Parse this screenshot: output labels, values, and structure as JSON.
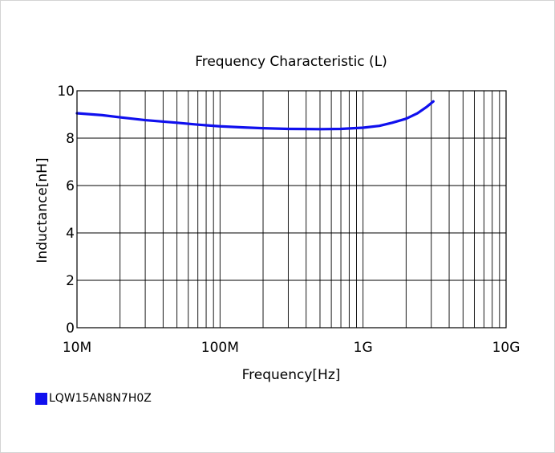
{
  "chart_data": {
    "type": "line",
    "title": "Frequency   Characteristic (L)",
    "xlabel": "Frequency[Hz]",
    "ylabel": "Inductance[nH]",
    "x_scale": "log",
    "xlim": [
      10000000,
      10000000000
    ],
    "ylim": [
      0,
      10
    ],
    "x_ticks": [
      {
        "value": 10000000,
        "label": "10M"
      },
      {
        "value": 100000000,
        "label": "100M"
      },
      {
        "value": 1000000000,
        "label": "1G"
      },
      {
        "value": 10000000000,
        "label": "10G"
      }
    ],
    "y_ticks": [
      {
        "value": 0,
        "label": "0"
      },
      {
        "value": 2,
        "label": "2"
      },
      {
        "value": 4,
        "label": "4"
      },
      {
        "value": 6,
        "label": "6"
      },
      {
        "value": 8,
        "label": "8"
      },
      {
        "value": 10,
        "label": "10"
      }
    ],
    "grid": true,
    "legend_position": "bottom-left",
    "series": [
      {
        "name": "LQW15AN8N7H0Z",
        "color": "#1010ee",
        "x": [
          10000000,
          15000000,
          20000000,
          30000000,
          50000000,
          70000000,
          100000000,
          150000000,
          200000000,
          300000000,
          500000000,
          700000000,
          1000000000,
          1300000000,
          1600000000,
          2000000000,
          2400000000,
          2800000000,
          3100000000
        ],
        "y": [
          9.05,
          8.97,
          8.88,
          8.76,
          8.65,
          8.57,
          8.5,
          8.45,
          8.42,
          8.39,
          8.38,
          8.39,
          8.44,
          8.52,
          8.65,
          8.82,
          9.05,
          9.33,
          9.55
        ]
      }
    ]
  }
}
